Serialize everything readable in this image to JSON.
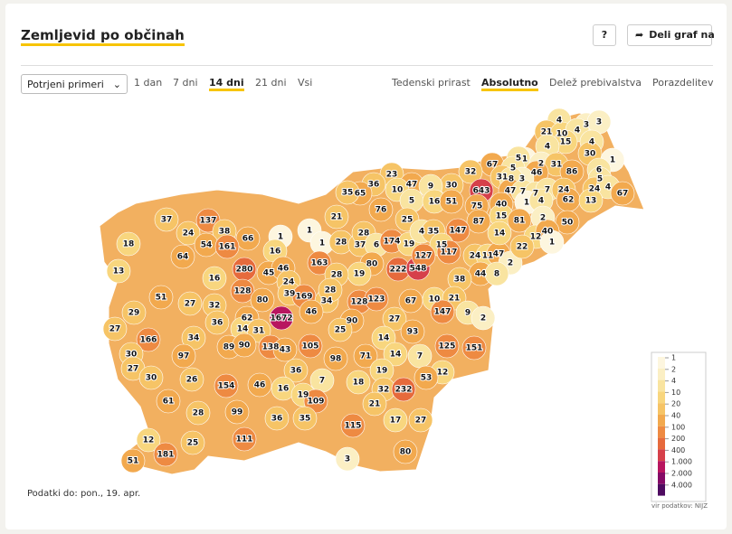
{
  "header": {
    "title": "Zemljevid po občinah",
    "help": "?",
    "share": "Deli graf na"
  },
  "controls": {
    "select": "Potrjeni primeri",
    "periods": [
      "1 dan",
      "7 dni",
      "14 dni",
      "21 dni",
      "Vsi"
    ],
    "active_period_index": 2,
    "modes": [
      "Tedenski prirast",
      "Absolutno",
      "Delež prebivalstva",
      "Porazdelitev"
    ],
    "active_mode_index": 1
  },
  "chart_data": {
    "type": "choropleth",
    "values": [
      4,
      3,
      3,
      21,
      10,
      4,
      15,
      4,
      4,
      30,
      1,
      1,
      5,
      2,
      31,
      86,
      67,
      32,
      5,
      46,
      6,
      3,
      5,
      31,
      8,
      643,
      47,
      7,
      7,
      7,
      24,
      24,
      4,
      67,
      30,
      23,
      47,
      9,
      36,
      10,
      65,
      35,
      5,
      16,
      51,
      75,
      40,
      1,
      4,
      62,
      13,
      76,
      21,
      87,
      15,
      81,
      2,
      50,
      25,
      147,
      137,
      37,
      38,
      24,
      66,
      1,
      1,
      1,
      28,
      37,
      28,
      6,
      174,
      19,
      4,
      35,
      15,
      24,
      11,
      47,
      2,
      12,
      40,
      1,
      22,
      14,
      18,
      54,
      161,
      16,
      64,
      163,
      80,
      222,
      548,
      127,
      117,
      44,
      8,
      13,
      280,
      45,
      46,
      19,
      28,
      16,
      24,
      38,
      128,
      39,
      169,
      34,
      128,
      123,
      67,
      10,
      28,
      51,
      80,
      27,
      32,
      21,
      29,
      46,
      1672,
      62,
      90,
      27,
      147,
      9,
      2,
      36,
      14,
      31,
      27,
      25,
      166,
      34,
      14,
      93,
      89,
      90,
      138,
      43,
      105,
      125,
      151,
      30,
      97,
      98,
      71,
      14,
      7,
      27,
      36,
      19,
      12,
      30,
      26,
      7,
      53,
      154,
      46,
      16,
      18,
      32,
      232,
      19,
      109,
      61,
      21,
      99,
      28,
      36,
      35,
      17,
      27,
      115,
      111,
      12,
      25,
      181,
      80,
      51,
      3
    ],
    "legend": {
      "ticks": [
        1,
        2,
        4,
        10,
        20,
        40,
        100,
        200,
        400,
        {
          "value": 1000,
          "label": "1.000"
        },
        {
          "value": 2000,
          "label": "2.000"
        },
        {
          "value": 4000,
          "label": "4.000"
        }
      ],
      "colors": [
        "#fdf6df",
        "#fbefc4",
        "#f9e4a0",
        "#f8d67e",
        "#f6c466",
        "#f2a94e",
        "#ee8a42",
        "#e66a3c",
        "#d6404a",
        "#b8155f",
        "#850a66",
        "#4e0b60"
      ]
    }
  },
  "footer": {
    "data_date": "Podatki do: pon., 19. apr.",
    "source": "vir podatkov: NIJZ"
  }
}
